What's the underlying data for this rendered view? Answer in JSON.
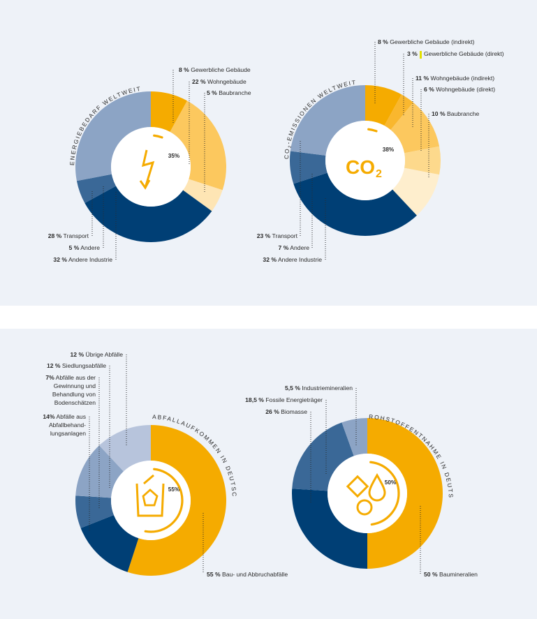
{
  "colors": {
    "yellow": "#f5ab00",
    "yellow_mid": "#f9b72e",
    "yellow_light": "#fcc85e",
    "yellow_lighter": "#fdd98c",
    "yellow_pale": "#fee5b4",
    "yellow_palest": "#feeecd",
    "navy": "#003f75",
    "blue_mid": "#3a6897",
    "blue_light": "#8ca4c5",
    "blue_pale": "#b7c4dc",
    "marker_yellow": "#e2e000"
  },
  "chart_data": [
    {
      "type": "pie",
      "title": "ENERGIEBEDARF WELTWEIT",
      "center_value": "35%",
      "icon": "lightning-icon",
      "slices": [
        {
          "label": "Gewerbliche Gebäude",
          "pct": "8 %",
          "value": 8,
          "color": "#f5ab00"
        },
        {
          "label": "Wohngebäude",
          "pct": "22 %",
          "value": 22,
          "color": "#fcc85e"
        },
        {
          "label": "Baubranche",
          "pct": "5 %",
          "value": 5,
          "color": "#fee5b4"
        },
        {
          "label": "Andere Industrie",
          "pct": "32 %",
          "value": 32,
          "color": "#003f75"
        },
        {
          "label": "Andere",
          "pct": "5 %",
          "value": 5,
          "color": "#3a6897"
        },
        {
          "label": "Transport",
          "pct": "28 %",
          "value": 28,
          "color": "#8ca4c5"
        }
      ]
    },
    {
      "type": "pie",
      "title": "CO2-EMISSIONEN WELTWEIT",
      "title_parts": [
        "CO",
        "2",
        "-EMISSIONEN WELTWEIT"
      ],
      "center_value": "38%",
      "icon": "co2-icon",
      "icon_text": "CO",
      "icon_sub": "2",
      "slices": [
        {
          "label": "Gewerbliche Gebäude (indirekt)",
          "pct": "8 %",
          "value": 8,
          "color": "#f5ab00"
        },
        {
          "label": "Gewerbliche Gebäude (direkt)",
          "pct": "3 %",
          "value": 3,
          "color": "#f9b72e"
        },
        {
          "label": "Wohngebäude (indirekt)",
          "pct": "11 %",
          "value": 11,
          "color": "#fcc85e"
        },
        {
          "label": "Wohngebäude (direkt)",
          "pct": "6 %",
          "value": 6,
          "color": "#fdd98c"
        },
        {
          "label": "Baubranche",
          "pct": "10 %",
          "value": 10,
          "color": "#feeecd"
        },
        {
          "label": "Andere Industrie",
          "pct": "32 %",
          "value": 32,
          "color": "#003f75"
        },
        {
          "label": "Andere",
          "pct": "7 %",
          "value": 7,
          "color": "#3a6897"
        },
        {
          "label": "Transport",
          "pct": "23 %",
          "value": 23,
          "color": "#8ca4c5"
        }
      ]
    },
    {
      "type": "pie",
      "title": "ABFALLAUFKOMMEN IN DEUTSCHLAND",
      "center_value": "55%",
      "icon": "waste-bin-icon",
      "slices": [
        {
          "label": "Bau- und Abbruchabfälle",
          "pct": "55 %",
          "value": 55,
          "color": "#f5ab00"
        },
        {
          "label": "Abfälle aus Abfallbehandlungsanlagen",
          "pct": "14%",
          "value": 14,
          "color": "#003f75",
          "lines": [
            "Abfälle aus",
            "Abfallbehand-",
            "lungsanlagen"
          ]
        },
        {
          "label": "Abfälle aus der Gewinnung und Behandlung von Bodenschätzen",
          "pct": "7%",
          "value": 7,
          "color": "#3a6897",
          "lines": [
            "Abfälle aus der",
            "Gewinnung und",
            "Behandlung von",
            "Bodenschätzen"
          ]
        },
        {
          "label": "Siedlungsabfälle",
          "pct": "12 %",
          "value": 12,
          "color": "#8ca4c5"
        },
        {
          "label": "Übrige Abfälle",
          "pct": "12 %",
          "value": 12,
          "color": "#b7c4dc"
        }
      ]
    },
    {
      "type": "pie",
      "title": "ROHSTOFFENTNAHME IN DEUTSCHLAND",
      "center_value": "50%",
      "icon": "raw-materials-icon",
      "slices": [
        {
          "label": "Baumineralien",
          "pct": "50 %",
          "value": 50,
          "color": "#f5ab00"
        },
        {
          "label": "Biomasse",
          "pct": "26 %",
          "value": 26,
          "color": "#003f75"
        },
        {
          "label": "Fossile Energieträger",
          "pct": "18,5 %",
          "value": 18.5,
          "color": "#3a6897"
        },
        {
          "label": "Industriemineralien",
          "pct": "5,5 %",
          "value": 5.5,
          "color": "#8ca4c5"
        }
      ]
    }
  ]
}
